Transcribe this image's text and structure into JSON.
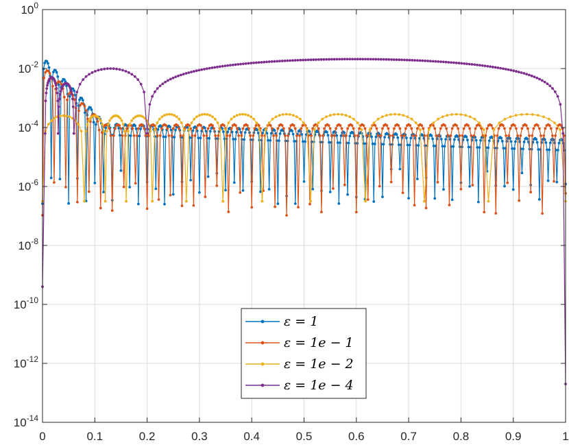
{
  "chart_data": {
    "type": "line",
    "title": "",
    "xlabel": "",
    "ylabel": "",
    "xlim": [
      0,
      1
    ],
    "ylim_log10": [
      -14,
      0
    ],
    "yscale": "log",
    "grid": true,
    "legend_location": "bottom-center",
    "x_ticks": [
      "0",
      "0.1",
      "0.2",
      "0.3",
      "0.4",
      "0.5",
      "0.6",
      "0.7",
      "0.8",
      "0.9",
      "1"
    ],
    "x_tick_values": [
      0,
      0.1,
      0.2,
      0.3,
      0.4,
      0.5,
      0.6,
      0.7,
      0.8,
      0.9,
      1
    ],
    "y_tick_base": "10",
    "y_tick_exponents": [
      "0",
      "-2",
      "-4",
      "-6",
      "-8",
      "-10",
      "-12",
      "-14"
    ],
    "y_tick_values": [
      0,
      -2,
      -4,
      -6,
      -8,
      -10,
      -12,
      -14
    ],
    "series": [
      {
        "name": "ε = 1",
        "color": "#0072BD",
        "marker": "dot",
        "approx_envelope_log10": -3.8,
        "approx_envelope_at_x1_log10": -4.4,
        "peak_near_x0_log10": -1.6,
        "dip_floor_log10": -6.0,
        "oscillations_per_unit": 60
      },
      {
        "name": "ε = 1e − 1",
        "color": "#D95319",
        "marker": "dot",
        "approx_envelope_log10": -3.9,
        "peak_near_x0_log10": -1.9,
        "dip_floor_log10": -6.4,
        "oscillations_per_unit": 45
      },
      {
        "name": "ε = 1e − 2",
        "color": "#EDB120",
        "marker": "dot",
        "approx_envelope_log10": -3.55,
        "dip_floor_log10": -6.5,
        "hump_centers_x": [
          0.06,
          0.1,
          0.14,
          0.18,
          0.24,
          0.31,
          0.38,
          0.46,
          0.565,
          0.67,
          0.79,
          0.915
        ],
        "hump_peaks_log10": [
          -3.6,
          -3.6,
          -3.6,
          -3.6,
          -3.55,
          -3.55,
          -3.55,
          -3.55,
          -3.55,
          -3.55,
          -3.55,
          -3.55
        ]
      },
      {
        "name": "ε = 1e − 4",
        "color": "#7E2F8E",
        "marker": "dot",
        "start_log10": -9.4,
        "end_log10": -12.7,
        "arches": [
          {
            "x_start": 0.005,
            "x_end": 0.03,
            "peak_log10": -2.3
          },
          {
            "x_start": 0.03,
            "x_end": 0.06,
            "peak_log10": -2.5
          },
          {
            "x_start": 0.06,
            "x_end": 0.2,
            "peak_log10": -2.0
          },
          {
            "x_start": 0.2,
            "x_end": 0.995,
            "peak_log10": -1.68
          }
        ],
        "dip_points": [
          {
            "x": 0.03,
            "log10": -3.6
          },
          {
            "x": 0.06,
            "log10": -3.8
          },
          {
            "x": 0.2,
            "log10": -3.7
          }
        ]
      }
    ]
  }
}
